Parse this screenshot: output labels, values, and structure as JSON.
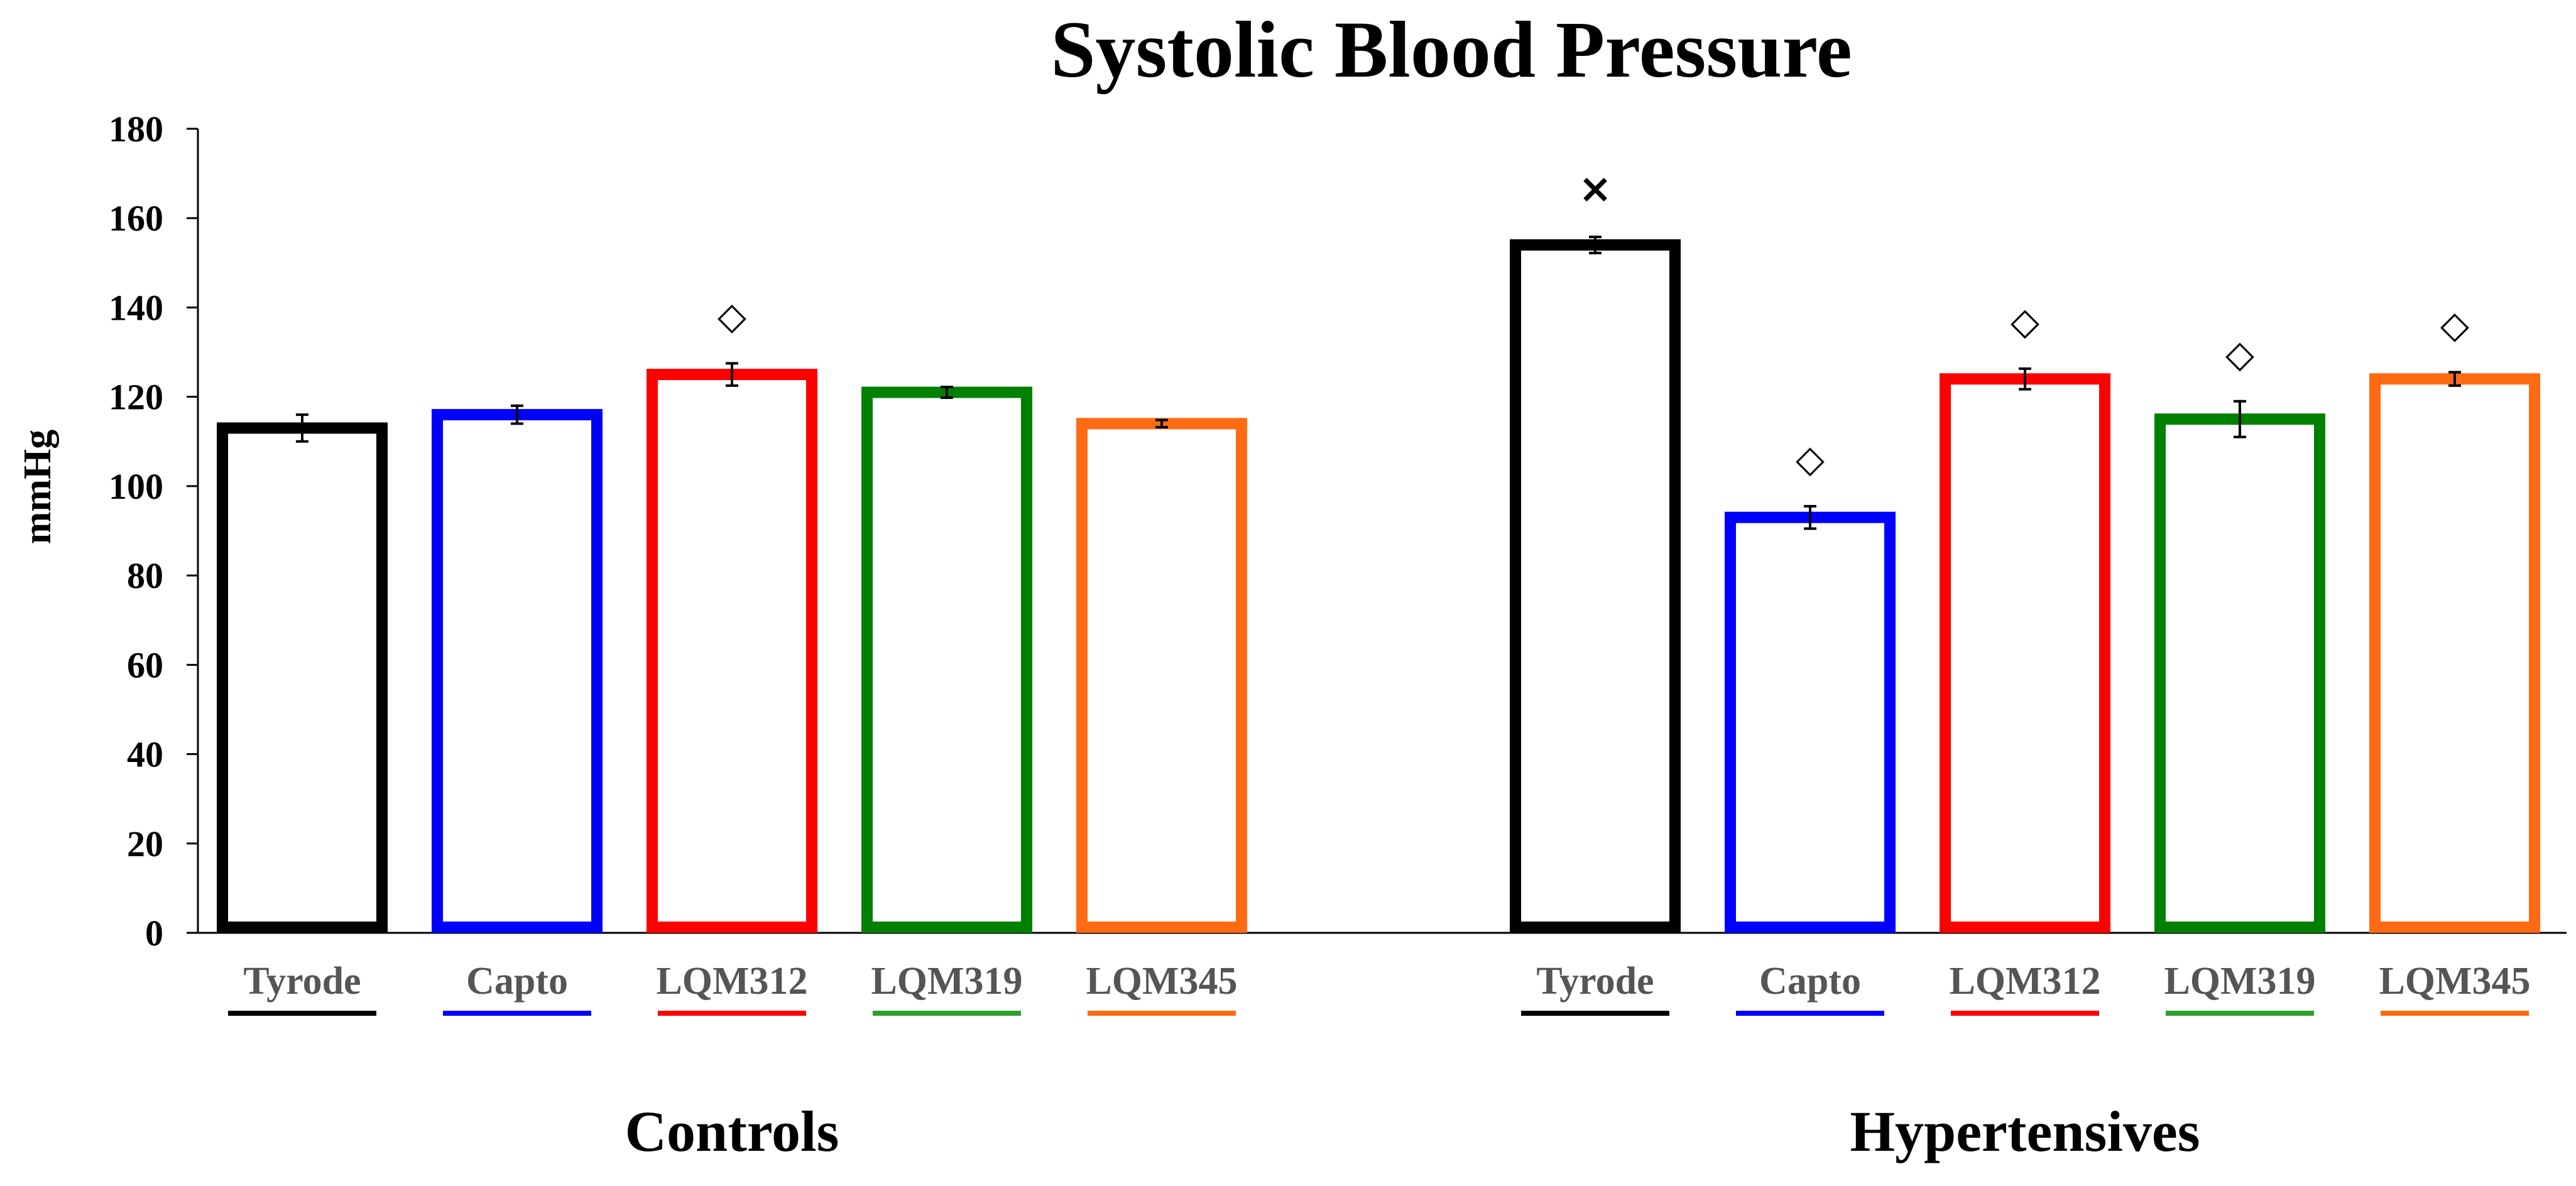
{
  "chart_data": {
    "type": "bar",
    "title": "Systolic Blood Pressure",
    "ylabel": "mmHg",
    "xlabel": "",
    "ylim": [
      0,
      180
    ],
    "yticks": [
      0,
      20,
      40,
      60,
      80,
      100,
      120,
      140,
      160,
      180
    ],
    "grid": false,
    "groups": [
      {
        "name": "Controls",
        "bars": [
          {
            "label": "Tyrode",
            "value": 113,
            "error": 3,
            "color": "#000000",
            "marker": ""
          },
          {
            "label": "Capto",
            "value": 116,
            "error": 2,
            "color": "#0000ff",
            "marker": ""
          },
          {
            "label": "LQM312",
            "value": 125,
            "error": 2.5,
            "color": "#ff0000",
            "marker": "◇"
          },
          {
            "label": "LQM319",
            "value": 121,
            "error": 1.2,
            "color": "#008000",
            "marker": ""
          },
          {
            "label": "LQM345",
            "value": 114,
            "error": 0.8,
            "color": "#ff6a13",
            "marker": ""
          }
        ]
      },
      {
        "name": "Hypertensives",
        "bars": [
          {
            "label": "Tyrode",
            "value": 154,
            "error": 1.8,
            "color": "#000000",
            "marker": "×"
          },
          {
            "label": "Capto",
            "value": 93,
            "error": 2.5,
            "color": "#0000ff",
            "marker": "◇"
          },
          {
            "label": "LQM312",
            "value": 124,
            "error": 2.3,
            "color": "#ff0000",
            "marker": "◇"
          },
          {
            "label": "LQM319",
            "value": 115,
            "error": 4,
            "color": "#008000",
            "marker": "◇"
          },
          {
            "label": "LQM345",
            "value": 124,
            "error": 1.5,
            "color": "#ff6a13",
            "marker": "◇"
          }
        ]
      }
    ],
    "tick_label_color": "#555555",
    "underline_colors": {
      "Tyrode": "#000000",
      "Capto": "#0000ff",
      "LQM312": "#ff0000",
      "LQM319": "#2ca02c",
      "LQM345": "#ff6a13"
    }
  }
}
